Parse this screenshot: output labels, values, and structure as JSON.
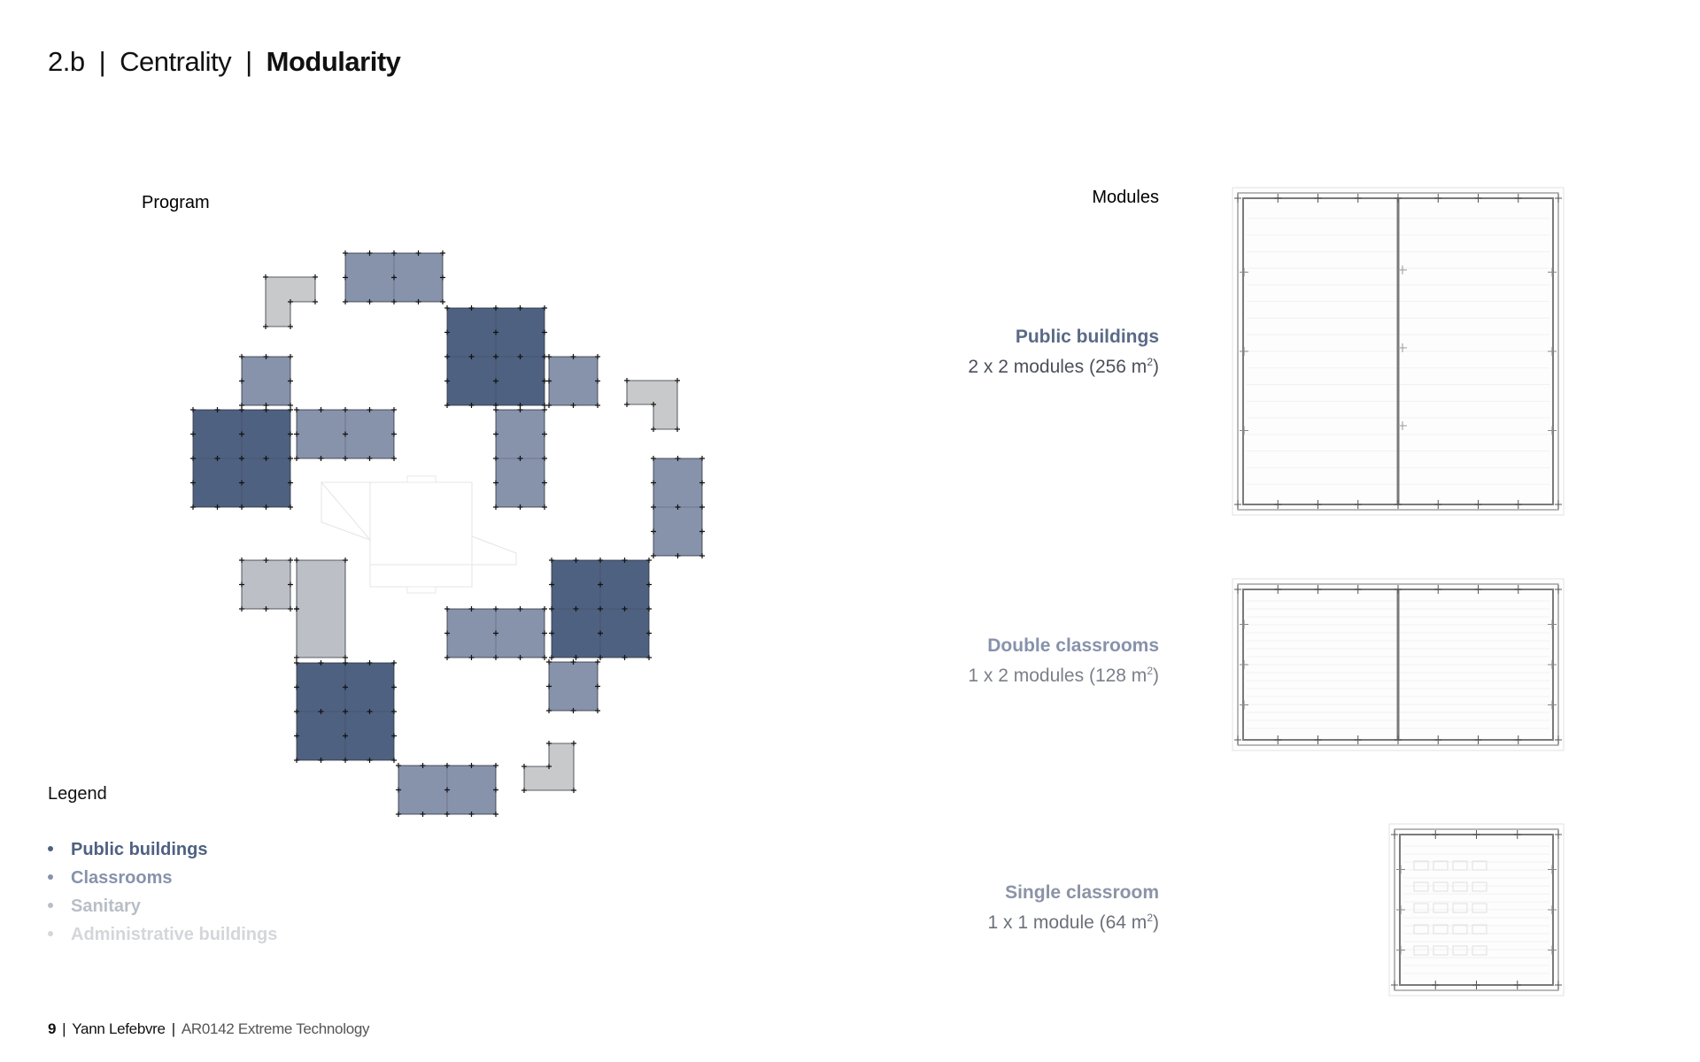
{
  "header": {
    "section": "2.b",
    "part1": "Centrality",
    "part2": "Modularity"
  },
  "program": {
    "label": "Program"
  },
  "modules": {
    "label": "Modules",
    "public": {
      "name": "Public buildings",
      "size": "2 x 2 modules (256 m",
      "unit_sup": "2",
      "close": ")"
    },
    "double": {
      "name": "Double classrooms",
      "size": "1 x 2 modules (128 m",
      "unit_sup": "2",
      "close": ")"
    },
    "single": {
      "name": "Single classroom",
      "size": "1 x 1 module (64 m",
      "unit_sup": "2",
      "close": ")"
    }
  },
  "legend": {
    "title": "Legend",
    "items": [
      {
        "label": "Public buildings",
        "color": "#4e6180"
      },
      {
        "label": "Classrooms",
        "color": "#8792ab"
      },
      {
        "label": "Sanitary",
        "color": "#b9bec6"
      },
      {
        "label": "Administrative buildings",
        "color": "#d4d6da"
      }
    ]
  },
  "footer": {
    "page": "9",
    "author": "Yann Lefebvre",
    "course": "AR0142 Extreme Technology"
  },
  "colors": {
    "public": "#4e6180",
    "classroom": "#8792ab",
    "sanitary": "#bcc0c6",
    "admin": "#c8c9cb"
  }
}
